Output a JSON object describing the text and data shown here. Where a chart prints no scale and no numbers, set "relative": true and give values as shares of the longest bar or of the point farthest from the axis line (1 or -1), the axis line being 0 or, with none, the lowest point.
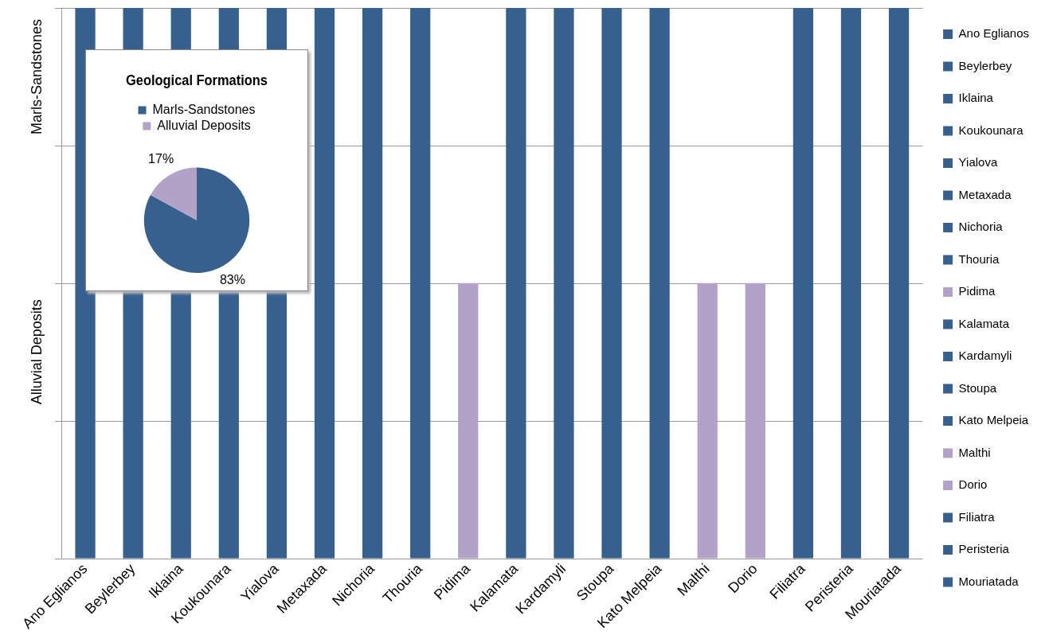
{
  "chart_data": [
    {
      "type": "bar",
      "categories": [
        "Ano Eglianos",
        "Beylerbey",
        "Iklaina",
        "Koukounara",
        "Yialova",
        "Metaxada",
        "Nichoria",
        "Thouria",
        "Pidima",
        "Kalamata",
        "Kardamyli",
        "Stoupa",
        "Kato Melpeia",
        "Malthi",
        "Dorio",
        "Filiatra",
        "Peristeria",
        "Mouriatada"
      ],
      "series": [
        {
          "name": "Ano Eglianos",
          "color": "#36618f",
          "values": [
            1,
            null,
            null,
            null,
            null,
            null,
            null,
            null,
            null,
            null,
            null,
            null,
            null,
            null,
            null,
            null,
            null,
            null
          ]
        },
        {
          "name": "Beylerbey",
          "color": "#36618f",
          "values": [
            null,
            1,
            null,
            null,
            null,
            null,
            null,
            null,
            null,
            null,
            null,
            null,
            null,
            null,
            null,
            null,
            null,
            null
          ]
        },
        {
          "name": "Iklaina",
          "color": "#36618f",
          "values": [
            null,
            null,
            1,
            null,
            null,
            null,
            null,
            null,
            null,
            null,
            null,
            null,
            null,
            null,
            null,
            null,
            null,
            null
          ]
        },
        {
          "name": "Koukounara",
          "color": "#36618f",
          "values": [
            null,
            null,
            null,
            1,
            null,
            null,
            null,
            null,
            null,
            null,
            null,
            null,
            null,
            null,
            null,
            null,
            null,
            null
          ]
        },
        {
          "name": "Yialova",
          "color": "#36618f",
          "values": [
            null,
            null,
            null,
            null,
            1,
            null,
            null,
            null,
            null,
            null,
            null,
            null,
            null,
            null,
            null,
            null,
            null,
            null
          ]
        },
        {
          "name": "Metaxada",
          "color": "#36618f",
          "values": [
            null,
            null,
            null,
            null,
            null,
            1,
            null,
            null,
            null,
            null,
            null,
            null,
            null,
            null,
            null,
            null,
            null,
            null
          ]
        },
        {
          "name": "Nichoria",
          "color": "#36618f",
          "values": [
            null,
            null,
            null,
            null,
            null,
            null,
            1,
            null,
            null,
            null,
            null,
            null,
            null,
            null,
            null,
            null,
            null,
            null
          ]
        },
        {
          "name": "Thouria",
          "color": "#36618f",
          "values": [
            null,
            null,
            null,
            null,
            null,
            null,
            null,
            1,
            null,
            null,
            null,
            null,
            null,
            null,
            null,
            null,
            null,
            null
          ]
        },
        {
          "name": "Pidima",
          "color": "#b3a2c8",
          "values": [
            null,
            null,
            null,
            null,
            null,
            null,
            null,
            null,
            0.5,
            null,
            null,
            null,
            null,
            null,
            null,
            null,
            null,
            null
          ]
        },
        {
          "name": "Kalamata",
          "color": "#36618f",
          "values": [
            null,
            null,
            null,
            null,
            null,
            null,
            null,
            null,
            null,
            1,
            null,
            null,
            null,
            null,
            null,
            null,
            null,
            null
          ]
        },
        {
          "name": "Kardamyli",
          "color": "#36618f",
          "values": [
            null,
            null,
            null,
            null,
            null,
            null,
            null,
            null,
            null,
            null,
            1,
            null,
            null,
            null,
            null,
            null,
            null,
            null
          ]
        },
        {
          "name": "Stoupa",
          "color": "#36618f",
          "values": [
            null,
            null,
            null,
            null,
            null,
            null,
            null,
            null,
            null,
            null,
            null,
            1,
            null,
            null,
            null,
            null,
            null,
            null
          ]
        },
        {
          "name": "Kato Melpeia",
          "color": "#36618f",
          "values": [
            null,
            null,
            null,
            null,
            null,
            null,
            null,
            null,
            null,
            null,
            null,
            null,
            1,
            null,
            null,
            null,
            null,
            null
          ]
        },
        {
          "name": "Malthi",
          "color": "#b3a2c8",
          "values": [
            null,
            null,
            null,
            null,
            null,
            null,
            null,
            null,
            null,
            null,
            null,
            null,
            null,
            0.5,
            null,
            null,
            null,
            null
          ]
        },
        {
          "name": "Dorio",
          "color": "#b3a2c8",
          "values": [
            null,
            null,
            null,
            null,
            null,
            null,
            null,
            null,
            null,
            null,
            null,
            null,
            null,
            null,
            0.5,
            null,
            null,
            null
          ]
        },
        {
          "name": "Filiatra",
          "color": "#36618f",
          "values": [
            null,
            null,
            null,
            null,
            null,
            null,
            null,
            null,
            null,
            null,
            null,
            null,
            null,
            null,
            null,
            1,
            null,
            null
          ]
        },
        {
          "name": "Peristeria",
          "color": "#36618f",
          "values": [
            null,
            null,
            null,
            null,
            null,
            null,
            null,
            null,
            null,
            null,
            null,
            null,
            null,
            null,
            null,
            null,
            1,
            null
          ]
        },
        {
          "name": "Mouriatada",
          "color": "#36618f",
          "values": [
            null,
            null,
            null,
            null,
            null,
            null,
            null,
            null,
            null,
            null,
            null,
            null,
            null,
            null,
            null,
            null,
            null,
            1
          ]
        }
      ],
      "relative": true,
      "annotations": [
        "Alluvial Deposits",
        "Marls-Sandstones"
      ],
      "grid": "y",
      "legend": "right"
    },
    {
      "type": "pie",
      "title": "Geological Formations",
      "categories": [
        "Marls-Sandstones",
        "Alluvial Deposits"
      ],
      "values": [
        83,
        17
      ],
      "colors": [
        "#36618f",
        "#b3a2c8"
      ],
      "value_labels": [
        "83%",
        "17%"
      ],
      "legend": "top"
    }
  ]
}
